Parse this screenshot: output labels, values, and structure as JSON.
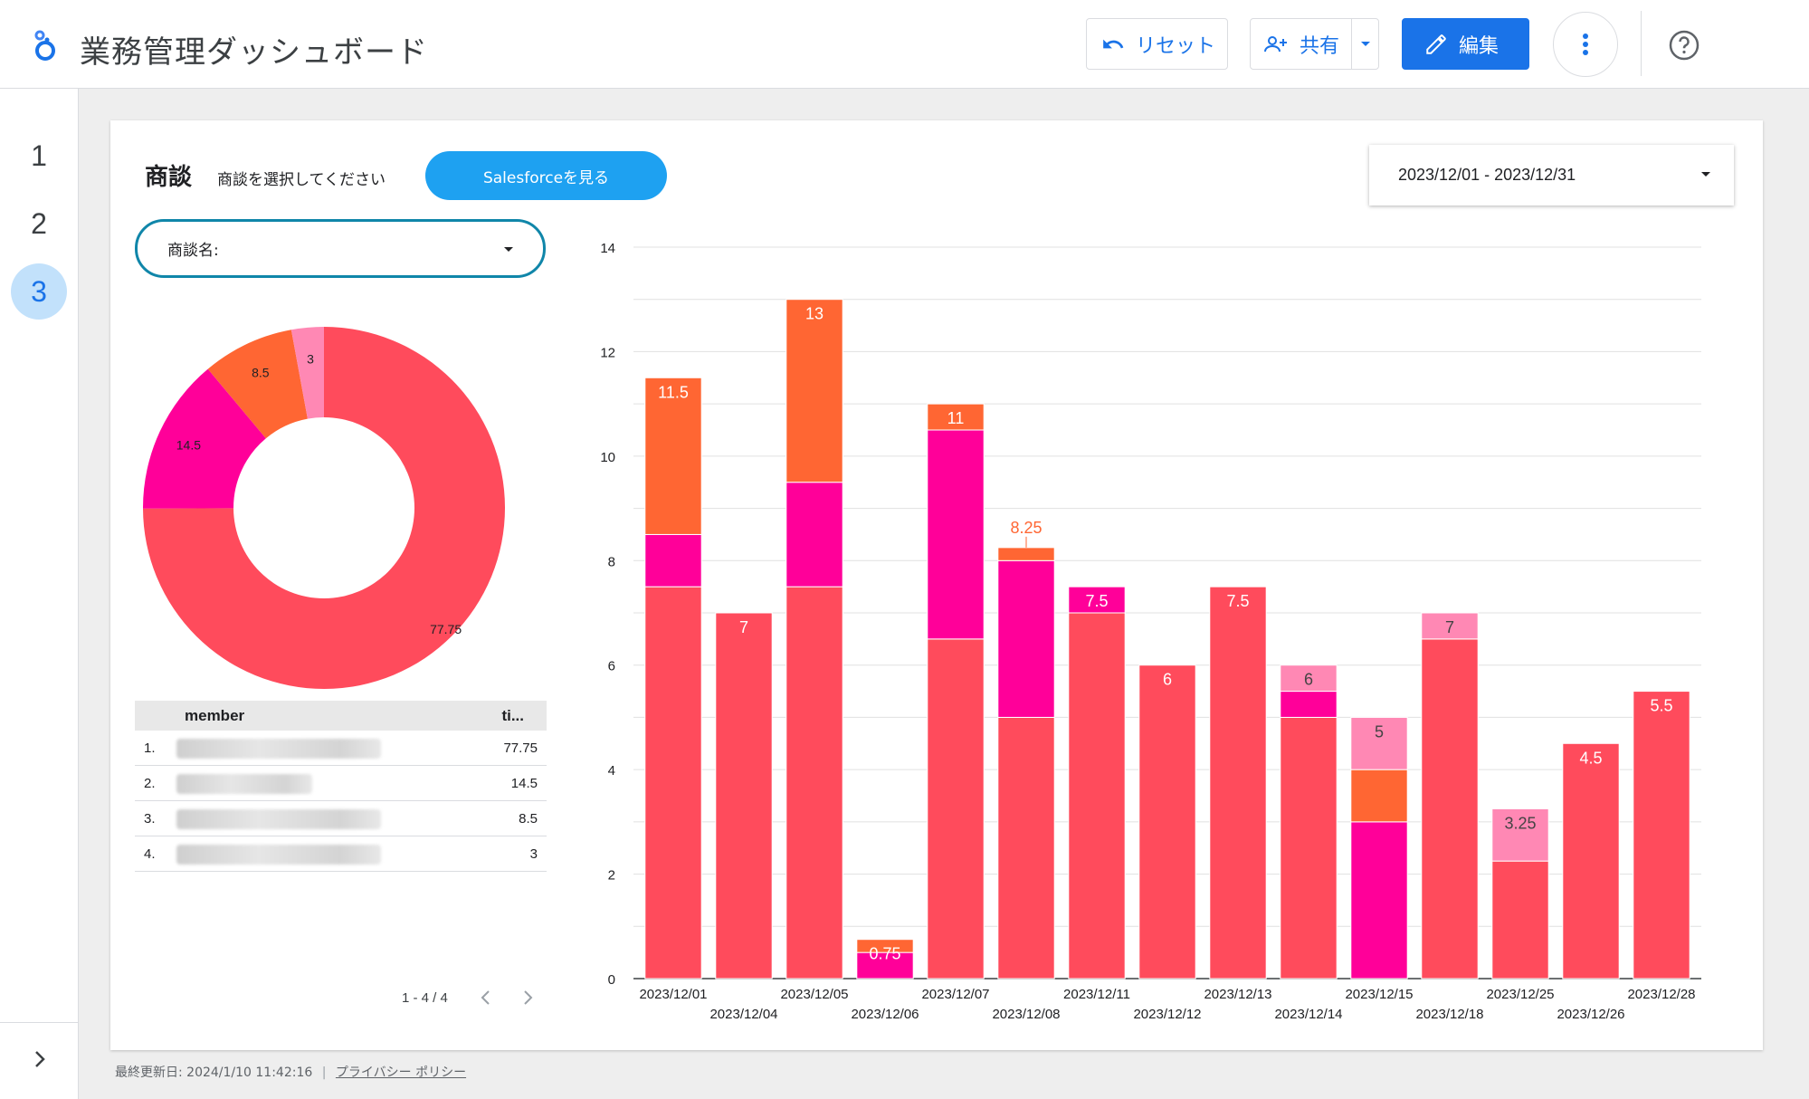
{
  "header": {
    "app_title": "業務管理ダッシュボード",
    "reset_label": "リセット",
    "share_label": "共有",
    "edit_label": "編集",
    "brand_color": "#1a73e8"
  },
  "nav": {
    "pages": [
      "1",
      "2",
      "3"
    ],
    "active_page": "3"
  },
  "section": {
    "title": "商談",
    "subtitle": "商談を選択してください",
    "salesforce_button": "Salesforceを見る",
    "date_range": "2023/12/01 - 2023/12/31",
    "filter_label": "商談名:"
  },
  "donut": {
    "slices": [
      {
        "value": 77.75,
        "label": "77.75",
        "color": "#ff4b5c"
      },
      {
        "value": 14.5,
        "label": "14.5",
        "color": "#ff0099"
      },
      {
        "value": 8.5,
        "label": "8.5",
        "color": "#ff6633"
      },
      {
        "value": 3,
        "label": "3",
        "color": "#ff88b4"
      }
    ]
  },
  "table": {
    "columns": [
      "member",
      "ti..."
    ],
    "rows": [
      {
        "idx": "1.",
        "value": "77.75"
      },
      {
        "idx": "2.",
        "value": "14.5"
      },
      {
        "idx": "3.",
        "value": "8.5"
      },
      {
        "idx": "4.",
        "value": "3"
      }
    ],
    "pager": "1 - 4 / 4"
  },
  "chart_data": {
    "type": "bar",
    "stacked": true,
    "ylim": [
      0,
      14
    ],
    "yticks": [
      "0",
      "2",
      "4",
      "6",
      "8",
      "10",
      "12",
      "14"
    ],
    "categories": [
      "2023/12/01",
      "2023/12/04",
      "2023/12/05",
      "2023/12/06",
      "2023/12/07",
      "2023/12/08",
      "2023/12/11",
      "2023/12/12",
      "2023/12/13",
      "2023/12/14",
      "2023/12/15",
      "2023/12/18",
      "2023/12/25",
      "2023/12/26",
      "2023/12/28"
    ],
    "series": [
      {
        "color": "#ff4b5c",
        "values": [
          7.5,
          7,
          7.5,
          0,
          6.5,
          5,
          7,
          6,
          7.5,
          5,
          0,
          6.5,
          2.25,
          4.5,
          5.5
        ]
      },
      {
        "color": "#ff0099",
        "values": [
          1,
          0,
          2,
          0.5,
          4,
          3,
          0.5,
          0,
          0,
          0.5,
          3,
          0,
          0,
          0,
          0
        ]
      },
      {
        "color": "#ff6633",
        "values": [
          3,
          0,
          3.5,
          0.25,
          0.5,
          0.25,
          0,
          0,
          0,
          0,
          1,
          0,
          0,
          0,
          0
        ]
      },
      {
        "color": "#ff88b4",
        "values": [
          0,
          0,
          0,
          0,
          0,
          0,
          0,
          0,
          0,
          0.5,
          1,
          0.5,
          1,
          0,
          0
        ]
      }
    ],
    "totals": [
      "11.5",
      "7",
      "13",
      "0.75",
      "11",
      "8.25",
      "7.5",
      "6",
      "7.5",
      "6",
      "5",
      "7",
      "3.25",
      "4.5",
      "5.5"
    ],
    "grid": true,
    "legend": "none"
  },
  "footer": {
    "updated": "最終更新日: 2024/1/10 11:42:16",
    "privacy": "プライバシー ポリシー"
  }
}
